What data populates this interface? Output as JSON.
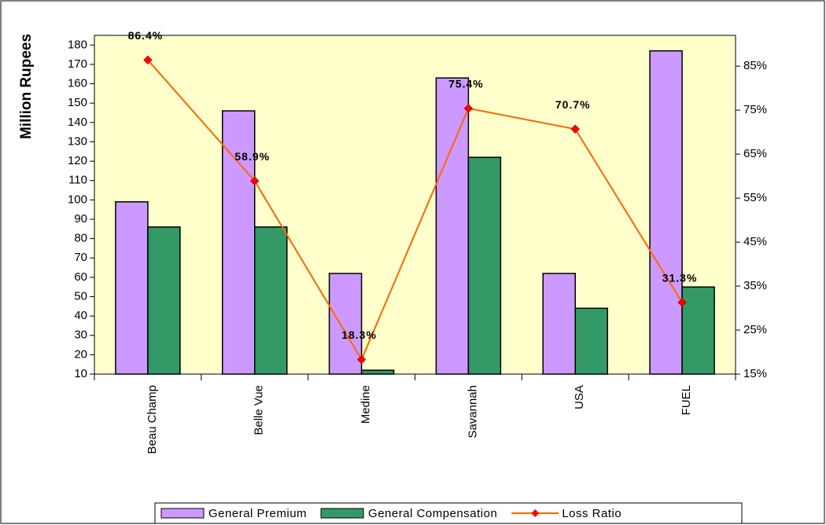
{
  "chart_data": {
    "type": "bar",
    "y_label": "Million Rupees",
    "categories": [
      "Beau Champ",
      "Belle Vue",
      "Medine",
      "Savannah",
      "USA",
      "FUEL"
    ],
    "series": [
      {
        "name": "General Premium",
        "color": "#cc99ff",
        "values": [
          99,
          146,
          62,
          163,
          62,
          177
        ]
      },
      {
        "name": "General Compensation",
        "color": "#339966",
        "values": [
          86,
          86,
          12,
          122,
          44,
          55
        ]
      },
      {
        "name": "Loss Ratio",
        "type": "line",
        "axis": "y2",
        "color": "#ff6600",
        "marker_color": "#ff0000",
        "values": [
          86.4,
          58.9,
          18.3,
          75.4,
          70.7,
          31.3
        ],
        "value_labels": [
          "86.4%",
          "58.9%",
          "18.3%",
          "75.4%",
          "70.7%",
          "31.3%"
        ]
      }
    ],
    "ylim": [
      10,
      185
    ],
    "yticks": [
      10,
      20,
      30,
      40,
      50,
      60,
      70,
      80,
      90,
      100,
      110,
      120,
      130,
      140,
      150,
      160,
      170,
      180
    ],
    "y2lim": [
      15,
      92
    ],
    "y2ticks": [
      {
        "value": 15,
        "label": "15%"
      },
      {
        "value": 25,
        "label": "25%"
      },
      {
        "value": 35,
        "label": "35%"
      },
      {
        "value": 45,
        "label": "45%"
      },
      {
        "value": 55,
        "label": "55%"
      },
      {
        "value": 65,
        "label": "65%"
      },
      {
        "value": 75,
        "label": "75%"
      },
      {
        "value": 85,
        "label": "85%"
      }
    ],
    "legend": "bottom",
    "plot_background": "#ffffcc"
  }
}
